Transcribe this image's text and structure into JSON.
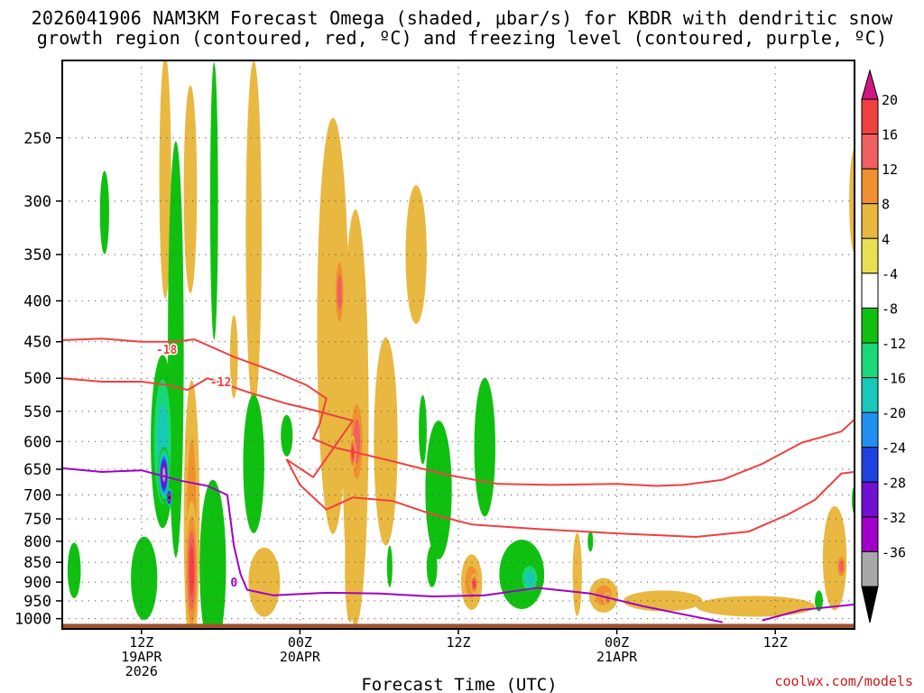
{
  "title_line1": "2026041906 NAM3KM Forecast Omega (shaded, μbar/s) for KBDR with dendritic snow",
  "title_line2": "growth region (contoured, red, ºC) and freezing level (contoured, purple, ºC)",
  "credit": "coolwx.com/models",
  "chart_data": {
    "type": "heatmap",
    "title": "2026041906 NAM3KM Forecast Omega (shaded, μbar/s) for KBDR with dendritic snow growth region (contoured, red, ºC) and freezing level (contoured, purple, ºC)",
    "xlabel": "Forecast Time (UTC)",
    "ylabel": "",
    "x_unit": "hours since 2026041906",
    "xlim": [
      0,
      60
    ],
    "y_scale": "log-pressure (inverted)",
    "ylim": [
      1030,
      200
    ],
    "x_ticks": [
      {
        "x": 6,
        "label": [
          "12Z",
          "19APR",
          "2026"
        ]
      },
      {
        "x": 18,
        "label": [
          "00Z",
          "20APR"
        ]
      },
      {
        "x": 30,
        "label": [
          "12Z"
        ]
      },
      {
        "x": 42,
        "label": [
          "00Z",
          "21APR"
        ]
      },
      {
        "x": 54,
        "label": [
          "12Z"
        ]
      }
    ],
    "y_ticks": [
      250,
      300,
      350,
      400,
      450,
      500,
      550,
      600,
      650,
      700,
      750,
      800,
      850,
      900,
      950,
      1000
    ],
    "colorbar": {
      "labels": [
        "20",
        "16",
        "12",
        "8",
        "4",
        "-4",
        "-8",
        "-12",
        "-16",
        "-20",
        "-24",
        "-28",
        "-32",
        "-36"
      ],
      "colors": [
        "#d01880",
        "#f04040",
        "#f06060",
        "#f09030",
        "#e8b840",
        "#e8e050",
        "#ffffff",
        "#10c010",
        "#18d878",
        "#18c8b8",
        "#2090f0",
        "#2040e0",
        "#7010d0",
        "#a000c8",
        "#a8a8a8",
        "#000000"
      ],
      "units": "μbar/s"
    },
    "omega_features": [
      {
        "x": 3.2,
        "p": 310,
        "rx": 0.35,
        "rp": 0.12,
        "v": -6
      },
      {
        "x": 7.8,
        "p": 280,
        "rx": 0.45,
        "rp": 0.35,
        "v": 6
      },
      {
        "x": 9.7,
        "p": 290,
        "rx": 0.5,
        "rp": 0.3,
        "v": 7
      },
      {
        "x": 11.5,
        "p": 300,
        "rx": 0.3,
        "rp": 0.4,
        "v": -5
      },
      {
        "x": 14.5,
        "p": 330,
        "rx": 0.6,
        "rp": 0.5,
        "v": 5
      },
      {
        "x": 13.0,
        "p": 470,
        "rx": 0.3,
        "rp": 0.12,
        "v": 5
      },
      {
        "x": 8.6,
        "p": 460,
        "rx": 0.6,
        "rp": 0.6,
        "v": -5
      },
      {
        "x": 7.6,
        "p": 600,
        "rx": 0.9,
        "rp": 0.25,
        "v": -12
      },
      {
        "x": 7.7,
        "p": 660,
        "rx": 0.45,
        "rp": 0.08,
        "v": -32
      },
      {
        "x": 8.1,
        "p": 705,
        "rx": 0.25,
        "rp": 0.03,
        "v": -37
      },
      {
        "x": 9.8,
        "p": 750,
        "rx": 0.6,
        "rp": 0.4,
        "v": 8
      },
      {
        "x": 9.8,
        "p": 870,
        "rx": 0.5,
        "rp": 0.2,
        "v": 18
      },
      {
        "x": 11.6,
        "p": 820,
        "rx": 0.6,
        "rp": 0.1,
        "v": -20
      },
      {
        "x": 11.4,
        "p": 860,
        "rx": 1.0,
        "rp": 0.25,
        "v": -6
      },
      {
        "x": 6.2,
        "p": 890,
        "rx": 1.0,
        "rp": 0.12,
        "v": -6
      },
      {
        "x": 0.9,
        "p": 870,
        "rx": 0.5,
        "rp": 0.08,
        "v": -6
      },
      {
        "x": 14.5,
        "p": 640,
        "rx": 0.8,
        "rp": 0.2,
        "v": -6
      },
      {
        "x": 17.0,
        "p": 590,
        "rx": 0.45,
        "rp": 0.06,
        "v": -6
      },
      {
        "x": 15.3,
        "p": 900,
        "rx": 1.2,
        "rp": 0.1,
        "v": 5
      },
      {
        "x": 20.5,
        "p": 430,
        "rx": 1.2,
        "rp": 0.6,
        "v": 7
      },
      {
        "x": 21.0,
        "p": 390,
        "rx": 0.4,
        "rp": 0.12,
        "v": 12
      },
      {
        "x": 22.2,
        "p": 560,
        "rx": 1.0,
        "rp": 0.6,
        "v": 6
      },
      {
        "x": 22.3,
        "p": 600,
        "rx": 0.6,
        "rp": 0.15,
        "v": 12
      },
      {
        "x": 22.0,
        "p": 620,
        "rx": 0.25,
        "rp": 0.05,
        "v": 18
      },
      {
        "x": 21.8,
        "p": 870,
        "rx": 0.4,
        "rp": 0.15,
        "v": 6
      },
      {
        "x": 26.8,
        "p": 350,
        "rx": 0.8,
        "rp": 0.2,
        "v": 5
      },
      {
        "x": 24.5,
        "p": 600,
        "rx": 0.9,
        "rp": 0.3,
        "v": 5
      },
      {
        "x": 27.3,
        "p": 580,
        "rx": 0.3,
        "rp": 0.1,
        "v": -5
      },
      {
        "x": 32.0,
        "p": 610,
        "rx": 0.8,
        "rp": 0.2,
        "v": -6
      },
      {
        "x": 28.5,
        "p": 690,
        "rx": 1.0,
        "rp": 0.2,
        "v": -6
      },
      {
        "x": 28.0,
        "p": 860,
        "rx": 0.4,
        "rp": 0.06,
        "v": -6
      },
      {
        "x": 24.8,
        "p": 860,
        "rx": 0.2,
        "rp": 0.06,
        "v": -6
      },
      {
        "x": 31.0,
        "p": 900,
        "rx": 0.8,
        "rp": 0.08,
        "v": 8
      },
      {
        "x": 31.2,
        "p": 905,
        "rx": 0.3,
        "rp": 0.03,
        "v": 16
      },
      {
        "x": 34.8,
        "p": 880,
        "rx": 1.7,
        "rp": 0.1,
        "v": -7
      },
      {
        "x": 35.4,
        "p": 890,
        "rx": 0.8,
        "rp": 0.05,
        "v": -14
      },
      {
        "x": 39.0,
        "p": 880,
        "rx": 0.35,
        "rp": 0.12,
        "v": 7
      },
      {
        "x": 40.0,
        "p": 800,
        "rx": 0.12,
        "rp": 0.03,
        "v": -5
      },
      {
        "x": 41.0,
        "p": 935,
        "rx": 1.1,
        "rp": 0.05,
        "v": 8
      },
      {
        "x": 41.3,
        "p": 945,
        "rx": 0.3,
        "rp": 0.02,
        "v": 12
      },
      {
        "x": 45.5,
        "p": 950,
        "rx": 3.0,
        "rp": 0.03,
        "v": 5
      },
      {
        "x": 52.5,
        "p": 965,
        "rx": 4.5,
        "rp": 0.03,
        "v": 5
      },
      {
        "x": 58.5,
        "p": 840,
        "rx": 0.9,
        "rp": 0.15,
        "v": 7
      },
      {
        "x": 59.0,
        "p": 860,
        "rx": 0.4,
        "rp": 0.04,
        "v": 12
      },
      {
        "x": 57.3,
        "p": 950,
        "rx": 0.3,
        "rp": 0.03,
        "v": -6
      },
      {
        "x": 60.0,
        "p": 300,
        "rx": 0.4,
        "rp": 0.15,
        "v": 6
      },
      {
        "x": 60.0,
        "p": 710,
        "rx": 0.2,
        "rp": 0.04,
        "v": -6
      }
    ],
    "contours": [
      {
        "name": "-18",
        "color": "#f04040",
        "label": "-18",
        "label_at": [
          7.9,
          460
        ],
        "segments": [
          [
            [
              0,
              448
            ],
            [
              3,
              446
            ],
            [
              6,
              450
            ],
            [
              8.5,
              450
            ],
            [
              10,
              447
            ],
            [
              13,
              470
            ],
            [
              16,
              490
            ],
            [
              18.5,
              510
            ],
            [
              20,
              530
            ],
            [
              19.5,
              570
            ],
            [
              19,
              595
            ],
            [
              20.5,
              610
            ],
            [
              22,
              618
            ],
            [
              25,
              635
            ],
            [
              29,
              660
            ],
            [
              33,
              678
            ],
            [
              37,
              680
            ],
            [
              42,
              678
            ],
            [
              45,
              682
            ],
            [
              47,
              680
            ],
            [
              50,
              670
            ],
            [
              53,
              640
            ],
            [
              56,
              602
            ],
            [
              59,
              583
            ],
            [
              60,
              563
            ]
          ]
        ]
      },
      {
        "name": "-12",
        "color": "#f04040",
        "label": "-12",
        "label_at": [
          12.0,
          505
        ],
        "segments": [
          [
            [
              0,
              500
            ],
            [
              3,
              505
            ],
            [
              6,
              505
            ],
            [
              8,
              510
            ],
            [
              9.5,
              517
            ],
            [
              11,
              500
            ],
            [
              14,
              520
            ],
            [
              17,
              538
            ],
            [
              19,
              548
            ],
            [
              22,
              565
            ],
            [
              19,
              665
            ],
            [
              17,
              632
            ],
            [
              18,
              680
            ],
            [
              20,
              730
            ],
            [
              22,
              705
            ],
            [
              25,
              712
            ],
            [
              28,
              740
            ],
            [
              31,
              762
            ],
            [
              36,
              772
            ],
            [
              42,
              782
            ],
            [
              48,
              790
            ],
            [
              52,
              778
            ],
            [
              55,
              740
            ],
            [
              57,
              710
            ],
            [
              59,
              658
            ],
            [
              60,
              655
            ]
          ]
        ]
      },
      {
        "name": "0",
        "color": "#a000c8",
        "label": "0",
        "label_at": [
          13.0,
          900
        ],
        "segments": [
          [
            [
              0,
              648
            ],
            [
              3,
              655
            ],
            [
              6,
              652
            ],
            [
              9,
              672
            ],
            [
              11,
              682
            ],
            [
              12.5,
              700
            ],
            [
              13,
              810
            ],
            [
              13.5,
              880
            ],
            [
              14,
              920
            ],
            [
              16,
              935
            ],
            [
              20,
              928
            ],
            [
              24,
              930
            ],
            [
              28,
              938
            ],
            [
              32,
              935
            ],
            [
              36,
              915
            ],
            [
              40,
              930
            ],
            [
              44,
              965
            ],
            [
              48,
              995
            ],
            [
              50,
              1010
            ]
          ],
          [
            [
              53,
              1005
            ],
            [
              56,
              975
            ],
            [
              60,
              960
            ]
          ]
        ]
      }
    ]
  }
}
